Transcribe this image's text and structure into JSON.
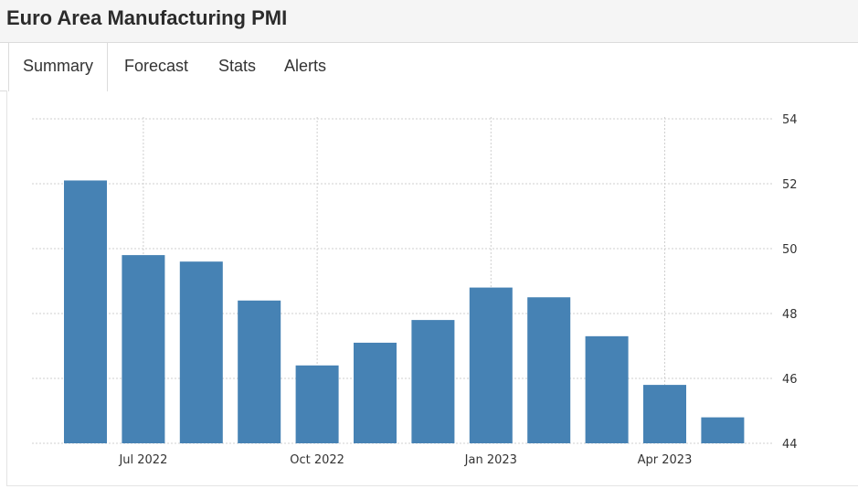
{
  "header": {
    "title": "Euro Area Manufacturing PMI"
  },
  "tabs": [
    {
      "label": "Summary",
      "active": true
    },
    {
      "label": "Forecast",
      "active": false
    },
    {
      "label": "Stats",
      "active": false
    },
    {
      "label": "Alerts",
      "active": false
    }
  ],
  "colors": {
    "bar": "#4682b4",
    "grid": "#cfcfcf",
    "header_bg": "#f5f5f5"
  },
  "chart_data": {
    "type": "bar",
    "title": "",
    "xlabel": "",
    "ylabel": "",
    "categories": [
      "Jun 2022",
      "Jul 2022",
      "Aug 2022",
      "Sep 2022",
      "Oct 2022",
      "Nov 2022",
      "Dec 2022",
      "Jan 2023",
      "Feb 2023",
      "Mar 2023",
      "Apr 2023",
      "May 2023"
    ],
    "values": [
      52.1,
      49.8,
      49.6,
      48.4,
      46.4,
      47.1,
      47.8,
      48.8,
      48.5,
      47.3,
      45.8,
      44.8
    ],
    "ylim": [
      44,
      54
    ],
    "yticks": [
      "54",
      "52",
      "50",
      "48",
      "46",
      "44"
    ],
    "xticks": [
      "Jul 2022",
      "Oct 2022",
      "Jan 2023",
      "Apr 2023"
    ],
    "y_axis_position": "right",
    "grid": true
  }
}
